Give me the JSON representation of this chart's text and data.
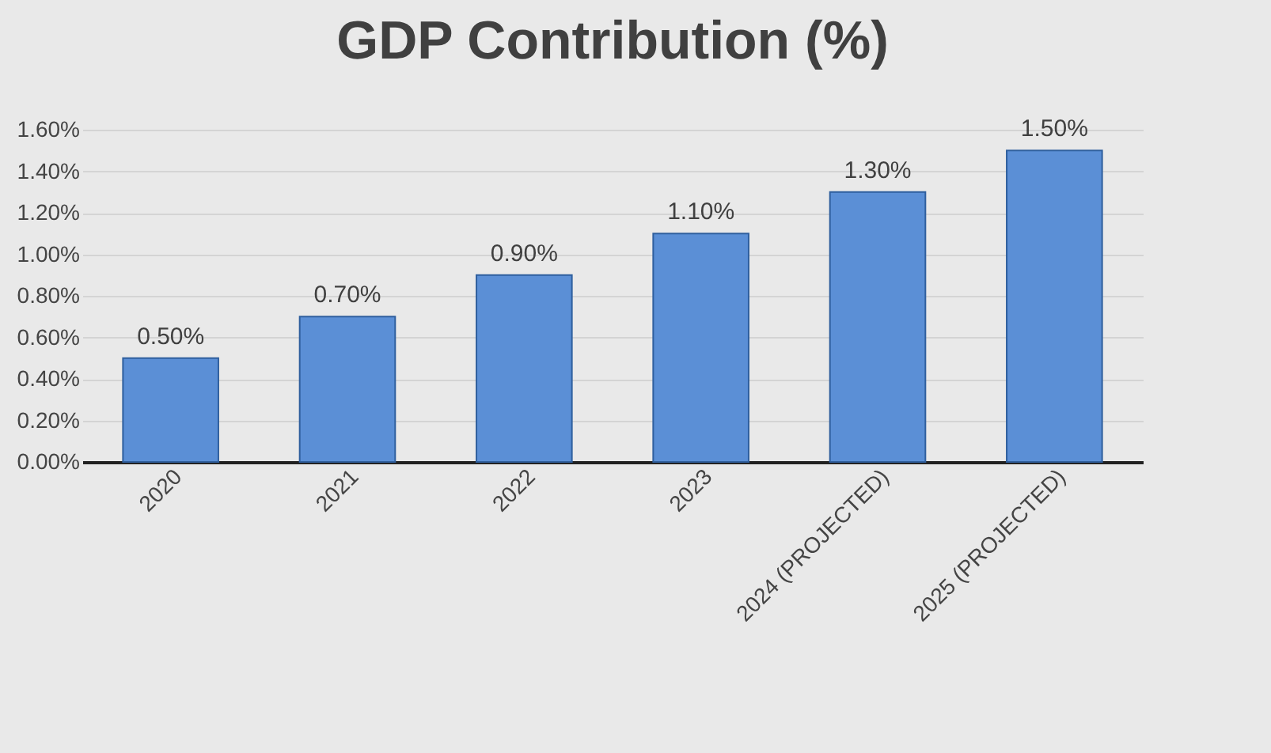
{
  "chart_data": {
    "type": "bar",
    "title": "GDP Contribution (%)",
    "categories": [
      "2020",
      "2021",
      "2022",
      "2023",
      "2024 (PROJECTED)",
      "2025 (PROJECTED)"
    ],
    "values": [
      0.5,
      0.7,
      0.9,
      1.1,
      1.3,
      1.5
    ],
    "value_labels": [
      "0.50%",
      "0.70%",
      "0.90%",
      "1.10%",
      "1.30%",
      "1.50%"
    ],
    "color": "#5b8fd6",
    "ylim": [
      0,
      1.6
    ],
    "yticks": [
      {
        "value": 0,
        "label": "0.00%"
      },
      {
        "value": 0.2,
        "label": "0.20%"
      },
      {
        "value": 0.4,
        "label": "0.40%"
      },
      {
        "value": 0.6,
        "label": "0.60%"
      },
      {
        "value": 0.8,
        "label": "0.80%"
      },
      {
        "value": 1.0,
        "label": "1.00%"
      },
      {
        "value": 1.2,
        "label": "1.20%"
      },
      {
        "value": 1.4,
        "label": "1.40%"
      },
      {
        "value": 1.6,
        "label": "1.60%"
      }
    ],
    "grid": "y"
  }
}
